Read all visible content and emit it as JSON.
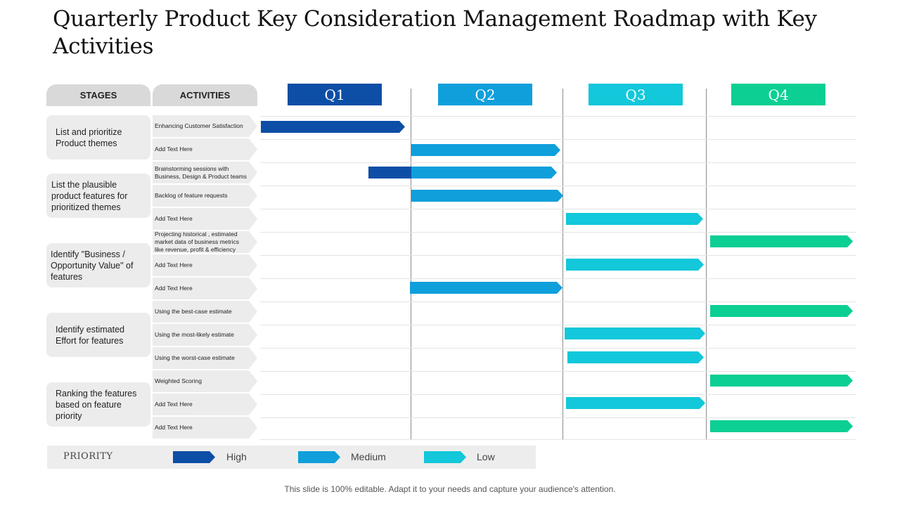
{
  "title": "Quarterly Product Key Consideration Management Roadmap with Key Activities",
  "headers": {
    "stages": "STAGES",
    "activities": "ACTIVITIES"
  },
  "quarters": [
    {
      "label": "Q1",
      "color": "#0d4ea6"
    },
    {
      "label": "Q2",
      "color": "#0f9fdb"
    },
    {
      "label": "Q3",
      "color": "#12c8da"
    },
    {
      "label": "Q4",
      "color": "#0ccf94"
    }
  ],
  "stages": [
    {
      "label": "List and prioritize Product themes"
    },
    {
      "label": "List the plausible product features for prioritized themes"
    },
    {
      "label": "Identify \"Business / Opportunity Value\" of features"
    },
    {
      "label": "Identify estimated Effort for features"
    },
    {
      "label": "Ranking the features based on feature priority"
    }
  ],
  "activities": [
    {
      "label": "Enhancing Customer Satisfaction"
    },
    {
      "label": "Add Text Here"
    },
    {
      "label": "Brainstorming sessions with Business, Design & Product teams"
    },
    {
      "label": "Backlog of feature requests"
    },
    {
      "label": "Add Text Here"
    },
    {
      "label": "Projecting historical , estimated market data of business metrics like revenue, profit & efficiency"
    },
    {
      "label": "Add Text Here"
    },
    {
      "label": "Add Text Here"
    },
    {
      "label": "Using the best-case estimate"
    },
    {
      "label": "Using the most-likely estimate"
    },
    {
      "label": "Using the worst-case estimate"
    },
    {
      "label": "Weighted Scoring"
    },
    {
      "label": "Add Text Here"
    },
    {
      "label": "Add Text Here"
    }
  ],
  "legend": {
    "title": "PRIORITY",
    "items": [
      {
        "label": "High",
        "color": "#0d4ea6"
      },
      {
        "label": "Medium",
        "color": "#0f9fdb"
      },
      {
        "label": "Low",
        "color": "#12c8da"
      }
    ]
  },
  "footer": "This slide is 100% editable. Adapt it to your needs and capture your audience's attention."
}
